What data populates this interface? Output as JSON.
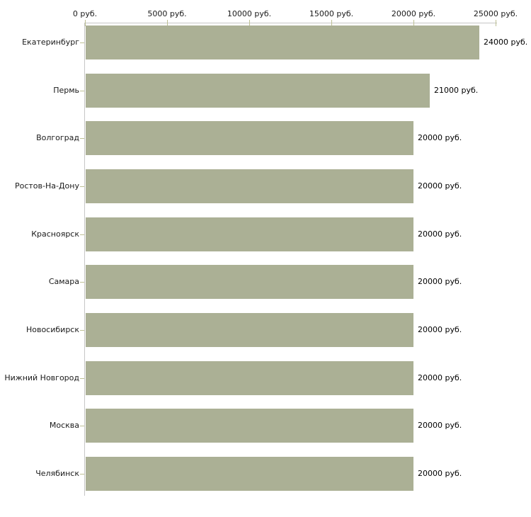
{
  "chart_data": {
    "type": "bar",
    "orientation": "horizontal",
    "title": "",
    "xlabel": "",
    "ylabel": "",
    "unit": "руб.",
    "categories": [
      "Екатеринбург",
      "Пермь",
      "Волгоград",
      "Ростов-На-Дону",
      "Красноярск",
      "Самара",
      "Новосибирск",
      "Нижний Новгород",
      "Москва",
      "Челябинск"
    ],
    "values": [
      24000,
      21000,
      20000,
      20000,
      20000,
      20000,
      20000,
      20000,
      20000,
      20000
    ],
    "value_labels": [
      "24000 руб.",
      "21000 руб.",
      "20000 руб.",
      "20000 руб.",
      "20000 руб.",
      "20000 руб.",
      "20000 руб.",
      "20000 руб.",
      "20000 руб.",
      "20000 руб."
    ],
    "x_axis": {
      "position": "top",
      "range": [
        0,
        25000
      ],
      "ticks": [
        0,
        5000,
        10000,
        15000,
        20000,
        25000
      ],
      "tick_labels": [
        "0 руб.",
        "5000 руб.",
        "10000 руб.",
        "15000 руб.",
        "20000 руб.",
        "25000 руб."
      ]
    },
    "legend": "none",
    "grid": "off",
    "colors": {
      "bar": "#abb095",
      "axis_line": "#c6c6c6",
      "tick_mark": "#bdc094",
      "text": "#1a1a1a",
      "background": "#ffffff"
    }
  }
}
